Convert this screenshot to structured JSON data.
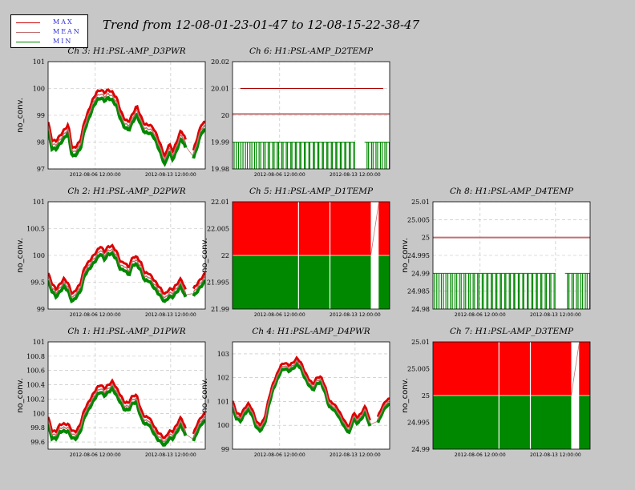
{
  "title": "Trend from 12-08-01-23-01-47 to 12-08-15-22-38-47",
  "legend": [
    {
      "label": "MAX",
      "color": "#cc0000"
    },
    {
      "label": "MEAN",
      "color": "#c07070"
    },
    {
      "label": "MIN",
      "color": "#008800"
    }
  ],
  "chart_data": [
    {
      "type": "line",
      "kind": "wavy",
      "title": "Ch 3: H1:PSL-AMP_D3PWR",
      "ylabel": "no_conv.",
      "ylim": [
        97,
        101
      ],
      "yticks": [
        "97",
        "98",
        "99",
        "100",
        "101"
      ],
      "xticks": [
        "2012-08-06 12:00:00",
        "2012-08-13 12:00:00"
      ],
      "band": 0.15,
      "gap": [
        0.88,
        0.92
      ],
      "series": [
        {
          "values": [
            98.6,
            97.9,
            97.9,
            98.1,
            98.3,
            98.5,
            97.6,
            97.7,
            97.9,
            98.6,
            99.0,
            99.4,
            99.7,
            99.8,
            99.7,
            99.8,
            99.7,
            99.5,
            99.0,
            98.7,
            98.6,
            98.9,
            99.2,
            98.8,
            98.5,
            98.5,
            98.4,
            98.1,
            97.7,
            97.3,
            97.8,
            97.5,
            97.9,
            98.3,
            98.0,
            97.4,
            97.5,
            98.0,
            98.5,
            98.6
          ]
        }
      ]
    },
    {
      "type": "line",
      "kind": "flat",
      "title": "Ch 6: H1:PSL-AMP_D2TEMP",
      "ylabel": "",
      "ylim": [
        19.98,
        20.02
      ],
      "yticks": [
        "19.98",
        "19.99",
        "20",
        "20.01",
        "20.02"
      ],
      "xticks": [
        "2012-08-06 12:00:00",
        "2012-08-13 12:00:00"
      ],
      "max": 20.01,
      "mean": 20.0005,
      "min": 19.99,
      "gap": [
        0.78,
        0.84
      ]
    },
    {
      "type": "line",
      "kind": "wavy",
      "title": "Ch 2: H1:PSL-AMP_D2PWR",
      "ylabel": "no_conv.",
      "ylim": [
        99,
        101
      ],
      "yticks": [
        "99",
        "99.5",
        "100",
        "100.5",
        "101"
      ],
      "xticks": [
        "2012-08-06 12:00:00",
        "2012-08-13 12:00:00"
      ],
      "band": 0.07,
      "gap": [
        0.88,
        0.92
      ],
      "series": [
        {
          "values": [
            99.6,
            99.4,
            99.3,
            99.4,
            99.5,
            99.4,
            99.2,
            99.3,
            99.4,
            99.7,
            99.8,
            99.9,
            100.0,
            100.1,
            100.0,
            100.1,
            100.1,
            100.0,
            99.8,
            99.8,
            99.7,
            99.9,
            99.9,
            99.8,
            99.6,
            99.6,
            99.5,
            99.4,
            99.3,
            99.2,
            99.3,
            99.3,
            99.4,
            99.5,
            99.3,
            99.2,
            99.3,
            99.4,
            99.5,
            99.6
          ]
        }
      ]
    },
    {
      "type": "area",
      "kind": "fill",
      "title": "Ch 5: H1:PSL-AMP_D1TEMP",
      "ylabel": "no_conv.",
      "ylim": [
        21.99,
        22.01
      ],
      "yticks": [
        "21.99",
        "21.995",
        "22",
        "22.005",
        "22.01"
      ],
      "xticks": [
        "2012-08-06 12:00:00",
        "2012-08-13 12:00:00"
      ],
      "max": 22.01,
      "mean": 22.0,
      "min": 21.99,
      "gap": [
        0.88,
        0.93
      ]
    },
    {
      "type": "line",
      "kind": "flat",
      "title": "Ch 8: H1:PSL-AMP_D4TEMP",
      "ylabel": "no_conv.",
      "ylim": [
        24.98,
        25.01
      ],
      "yticks": [
        "24.98",
        "24.985",
        "24.99",
        "24.995",
        "25",
        "25.005",
        "25.01"
      ],
      "xticks": [
        "2012-08-06 12:00:00",
        "2012-08-13 12:00:00"
      ],
      "max": 25.0,
      "mean": 25.0,
      "min": 24.99,
      "gap": [
        0.78,
        0.84
      ]
    },
    {
      "type": "line",
      "kind": "wavy",
      "title": "Ch 1: H1:PSL-AMP_D1PWR",
      "ylabel": "no_conv.",
      "ylim": [
        99.5,
        101
      ],
      "yticks": [
        "99.6",
        "99.8",
        "100",
        "100.2",
        "100.4",
        "100.6",
        "100.8",
        "101"
      ],
      "xticks": [
        "2012-08-06 12:00:00",
        "2012-08-13 12:00:00"
      ],
      "band": 0.05,
      "gap": [
        0.88,
        0.92
      ],
      "series": [
        {
          "values": [
            99.9,
            99.7,
            99.7,
            99.8,
            99.8,
            99.8,
            99.7,
            99.7,
            99.8,
            100.0,
            100.1,
            100.2,
            100.3,
            100.35,
            100.3,
            100.35,
            100.4,
            100.3,
            100.2,
            100.1,
            100.1,
            100.2,
            100.2,
            100.0,
            99.9,
            99.9,
            99.8,
            99.7,
            99.65,
            99.6,
            99.7,
            99.7,
            99.8,
            99.9,
            99.75,
            99.6,
            99.65,
            99.8,
            99.9,
            99.95
          ]
        }
      ]
    },
    {
      "type": "line",
      "kind": "wavy",
      "title": "Ch 4: H1:PSL-AMP_D4PWR",
      "ylabel": "no_conv.",
      "ylim": [
        99,
        103.5
      ],
      "yticks": [
        "99",
        "100",
        "101",
        "102",
        "103"
      ],
      "xticks": [
        "2012-08-06 12:00:00",
        "2012-08-13 12:00:00"
      ],
      "band": 0.12,
      "gap": [
        0.88,
        0.92
      ],
      "series": [
        {
          "values": [
            100.9,
            100.4,
            100.3,
            100.6,
            100.8,
            100.5,
            100.0,
            99.9,
            100.2,
            101.0,
            101.6,
            102.0,
            102.4,
            102.5,
            102.4,
            102.5,
            102.7,
            102.5,
            102.1,
            101.8,
            101.6,
            101.9,
            101.9,
            101.5,
            100.9,
            100.8,
            100.6,
            100.3,
            100.0,
            99.8,
            100.4,
            100.2,
            100.4,
            100.7,
            100.1,
            99.9,
            100.2,
            100.6,
            100.9,
            101.0
          ]
        }
      ]
    },
    {
      "type": "area",
      "kind": "fill",
      "title": "Ch 7: H1:PSL-AMP_D3TEMP",
      "ylabel": "no_conv.",
      "ylim": [
        24.99,
        25.01
      ],
      "yticks": [
        "24.99",
        "24.995",
        "25",
        "25.005",
        "25.01"
      ],
      "xticks": [
        "2012-08-06 12:00:00",
        "2012-08-13 12:00:00"
      ],
      "max": 25.01,
      "mean": 25.0,
      "min": 24.99,
      "gap": [
        0.88,
        0.93
      ]
    }
  ]
}
